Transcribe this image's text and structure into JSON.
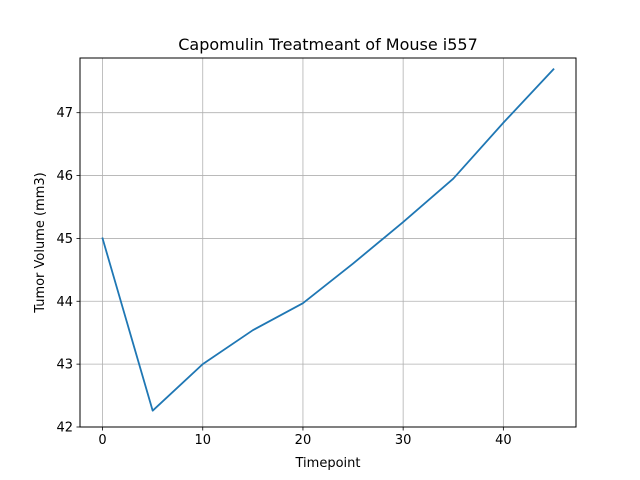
{
  "chart_data": {
    "type": "line",
    "title": "Capomulin Treatmeant of Mouse i557",
    "xlabel": "Timepoint",
    "ylabel": "Tumor Volume (mm3)",
    "xlim": [
      -2.25,
      47.25
    ],
    "ylim": [
      42.0,
      47.87
    ],
    "xticks": [
      0,
      10,
      20,
      30,
      40
    ],
    "yticks": [
      42,
      43,
      44,
      45,
      46,
      47
    ],
    "grid": true,
    "series": [
      {
        "color": "#1f77b4",
        "x": [
          0,
          5,
          10,
          15,
          20,
          25,
          30,
          35,
          40,
          45
        ],
        "y": [
          45.0,
          42.26,
          43.0,
          43.54,
          43.97,
          44.6,
          45.26,
          45.95,
          46.84,
          47.69
        ]
      }
    ]
  }
}
